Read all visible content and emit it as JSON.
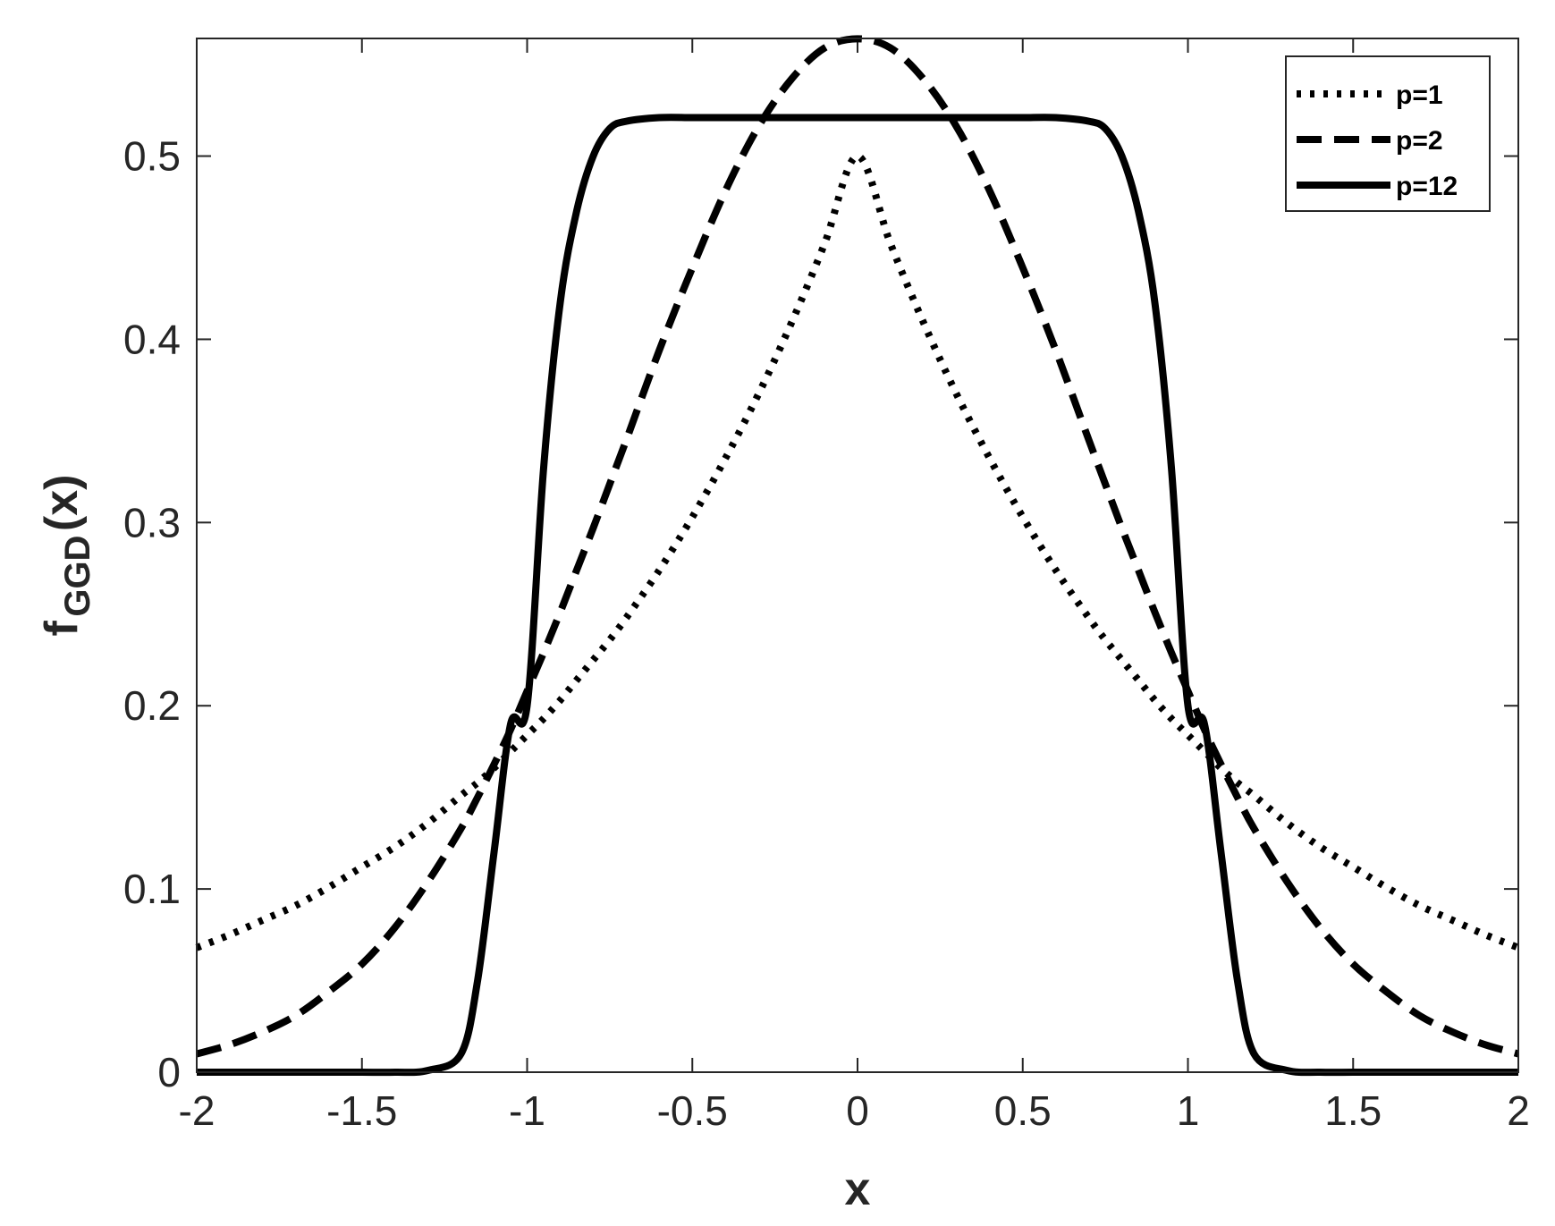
{
  "chart_data": {
    "type": "line",
    "title": "",
    "xlabel": "x",
    "ylabel": {
      "base": "f",
      "subscript": "GGD",
      "suffix": "(x)"
    },
    "xlim": [
      -2,
      2
    ],
    "ylim": [
      0,
      0.5642
    ],
    "xticks": [
      -2,
      -1.5,
      -1,
      -0.5,
      0,
      0.5,
      1,
      1.5,
      2
    ],
    "xtick_labels": [
      "-2",
      "-1.5",
      "-1",
      "-0.5",
      "0",
      "0.5",
      "1",
      "1.5",
      "2"
    ],
    "yticks": [
      0,
      0.1,
      0.2,
      0.3,
      0.4,
      0.5
    ],
    "ytick_labels": [
      "0",
      "0.1",
      "0.2",
      "0.3",
      "0.4",
      "0.5"
    ],
    "grid": false,
    "legend_position": "top-right",
    "x": [
      -2.0,
      -1.9,
      -1.8,
      -1.7,
      -1.6,
      -1.5,
      -1.4,
      -1.3,
      -1.2,
      -1.15,
      -1.1,
      -1.05,
      -1.0,
      -0.95,
      -0.9,
      -0.85,
      -0.8,
      -0.75,
      -0.7,
      -0.6,
      -0.5,
      -0.4,
      -0.3,
      -0.2,
      -0.1,
      0.0,
      0.1,
      0.2,
      0.3,
      0.4,
      0.5,
      0.6,
      0.7,
      0.75,
      0.8,
      0.85,
      0.9,
      0.95,
      1.0,
      1.05,
      1.1,
      1.15,
      1.2,
      1.3,
      1.4,
      1.5,
      1.6,
      1.7,
      1.8,
      1.9,
      2.0
    ],
    "series": [
      {
        "name": "p=1",
        "style": "dotted",
        "values": [
          0.068,
          0.075,
          0.083,
          0.091,
          0.101,
          0.112,
          0.123,
          0.136,
          0.151,
          0.158,
          0.166,
          0.175,
          0.184,
          0.193,
          0.203,
          0.214,
          0.225,
          0.236,
          0.248,
          0.274,
          0.303,
          0.335,
          0.37,
          0.409,
          0.452,
          0.5,
          0.452,
          0.409,
          0.37,
          0.335,
          0.303,
          0.274,
          0.248,
          0.236,
          0.225,
          0.214,
          0.203,
          0.193,
          0.184,
          0.175,
          0.166,
          0.158,
          0.151,
          0.136,
          0.123,
          0.112,
          0.101,
          0.091,
          0.083,
          0.075,
          0.068
        ]
      },
      {
        "name": "p=2",
        "style": "dashed",
        "values": [
          0.01,
          0.015,
          0.022,
          0.031,
          0.044,
          0.059,
          0.079,
          0.104,
          0.133,
          0.15,
          0.168,
          0.187,
          0.208,
          0.229,
          0.251,
          0.274,
          0.297,
          0.321,
          0.345,
          0.394,
          0.439,
          0.481,
          0.516,
          0.542,
          0.559,
          0.564,
          0.559,
          0.542,
          0.516,
          0.481,
          0.439,
          0.394,
          0.345,
          0.321,
          0.297,
          0.274,
          0.251,
          0.229,
          0.208,
          0.187,
          0.168,
          0.15,
          0.133,
          0.104,
          0.079,
          0.059,
          0.044,
          0.031,
          0.022,
          0.015,
          0.01
        ]
      },
      {
        "name": "p=12",
        "style": "solid",
        "values": [
          0.0,
          0.0,
          0.0,
          0.0,
          0.0,
          0.0,
          0.0,
          0.001,
          0.01,
          0.05,
          0.12,
          0.19,
          0.2,
          0.33,
          0.42,
          0.47,
          0.5,
          0.515,
          0.519,
          0.521,
          0.521,
          0.521,
          0.521,
          0.521,
          0.521,
          0.521,
          0.521,
          0.521,
          0.521,
          0.521,
          0.521,
          0.521,
          0.519,
          0.515,
          0.5,
          0.47,
          0.42,
          0.33,
          0.2,
          0.19,
          0.12,
          0.05,
          0.01,
          0.001,
          0.0,
          0.0,
          0.0,
          0.0,
          0.0,
          0.0,
          0.0
        ]
      }
    ]
  }
}
